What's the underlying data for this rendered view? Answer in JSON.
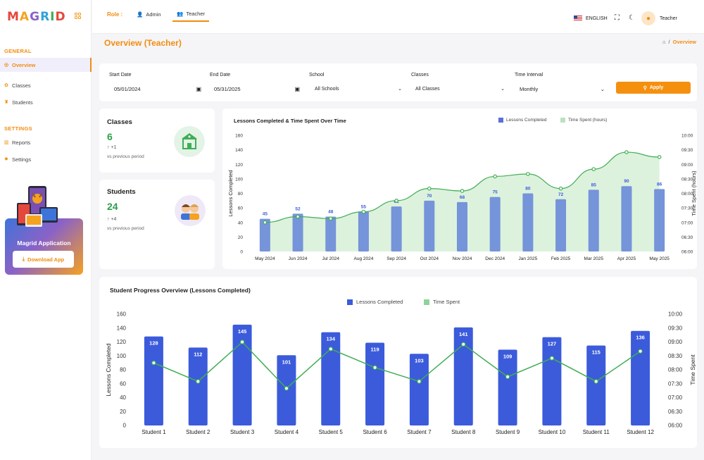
{
  "app": {
    "logo": "MAGRID"
  },
  "sidebar": {
    "general_label": "GENERAL",
    "settings_label": "SETTINGS",
    "items": [
      {
        "label": "Overview",
        "icon": "overview-icon"
      },
      {
        "label": "Classes",
        "icon": "classes-icon"
      },
      {
        "label": "Students",
        "icon": "students-icon"
      },
      {
        "label": "Reports",
        "icon": "reports-icon"
      },
      {
        "label": "Settings",
        "icon": "settings-gear-icon"
      }
    ],
    "promo": {
      "title": "Magrid Application",
      "button": "Download App"
    }
  },
  "header": {
    "role_label": "Role :",
    "roles": [
      {
        "label": "Admin"
      },
      {
        "label": "Teacher"
      }
    ],
    "language": "ENGLISH",
    "user": "Teacher"
  },
  "page": {
    "title": "Overview (Teacher)",
    "breadcrumb_current": "Overview"
  },
  "filters": {
    "start_date": {
      "label": "Start Date",
      "value": "05/01/2024"
    },
    "end_date": {
      "label": "End Date",
      "value": "05/31/2025"
    },
    "school": {
      "label": "School",
      "value": "All Schools"
    },
    "classes": {
      "label": "Classes",
      "value": "All Classes"
    },
    "interval": {
      "label": "Time Interval",
      "value": "Monthly"
    },
    "apply": "Apply"
  },
  "stats": {
    "classes": {
      "title": "Classes",
      "value": "6",
      "delta": "+1",
      "sub": "vs previous period"
    },
    "students": {
      "title": "Students",
      "value": "24",
      "delta": "+4",
      "sub": "vs previous period"
    }
  },
  "colors": {
    "accent": "#f28c0f",
    "bar1": "#6f8fd6",
    "bar2": "#3b5bdb",
    "line": "#3fae55"
  },
  "chart_data": [
    {
      "type": "bar",
      "title": "Lessons Completed & Time Spent Over Time",
      "categories": [
        "May 2024",
        "Jun 2024",
        "Jul 2024",
        "Aug 2024",
        "Sep 2024",
        "Oct 2024",
        "Nov 2024",
        "Dec 2024",
        "Jan 2025",
        "Feb 2025",
        "Mar 2025",
        "Apr 2025",
        "May 2025"
      ],
      "series": [
        {
          "name": "Lessons Completed",
          "type": "bar",
          "axis": "left",
          "values": [
            45,
            52,
            48,
            55,
            62,
            70,
            68,
            75,
            80,
            72,
            85,
            90,
            86
          ]
        },
        {
          "name": "Time Spent (hours)",
          "type": "area",
          "axis": "right",
          "values": [
            "07:00",
            "07:12",
            "07:08",
            "07:22",
            "07:45",
            "08:10",
            "08:05",
            "08:35",
            "08:40",
            "08:10",
            "08:50",
            "09:25",
            "09:15"
          ]
        }
      ],
      "ylabel": "Lessons Completed",
      "y2label": "Time Spent (hours)",
      "ylim": [
        0,
        160
      ],
      "yticks": [
        0,
        20,
        40,
        60,
        80,
        100,
        120,
        140,
        160
      ],
      "y2ticks": [
        "06:00",
        "06:30",
        "07:00",
        "07:30",
        "08:00",
        "08:30",
        "09:00",
        "09:30",
        "10:00"
      ],
      "legend": "top-right"
    },
    {
      "type": "bar",
      "title": "Student Progress Overview (Lessons Completed)",
      "categories": [
        "Student 1",
        "Student 2",
        "Student 3",
        "Student 4",
        "Student 5",
        "Student 6",
        "Student 7",
        "Student 8",
        "Student 9",
        "Student 10",
        "Student 11",
        "Student 12"
      ],
      "series": [
        {
          "name": "Lessons Completed",
          "type": "bar",
          "axis": "left",
          "values": [
            128,
            112,
            145,
            101,
            134,
            119,
            103,
            141,
            109,
            127,
            115,
            136
          ]
        },
        {
          "name": "Time Spent",
          "type": "line",
          "axis": "right",
          "values": [
            "08:15",
            "07:35",
            "09:00",
            "07:20",
            "08:45",
            "08:05",
            "07:35",
            "08:55",
            "07:45",
            "08:25",
            "07:35",
            "08:40"
          ]
        }
      ],
      "ylabel": "Lessons Completed",
      "y2label": "Time Spent",
      "ylim": [
        0,
        160
      ],
      "yticks": [
        0,
        20,
        40,
        60,
        80,
        100,
        120,
        140,
        160
      ],
      "y2ticks": [
        "06:00",
        "06:30",
        "07:00",
        "07:30",
        "08:00",
        "08:30",
        "09:00",
        "09:30",
        "10:00"
      ],
      "legend": "top-center"
    }
  ]
}
